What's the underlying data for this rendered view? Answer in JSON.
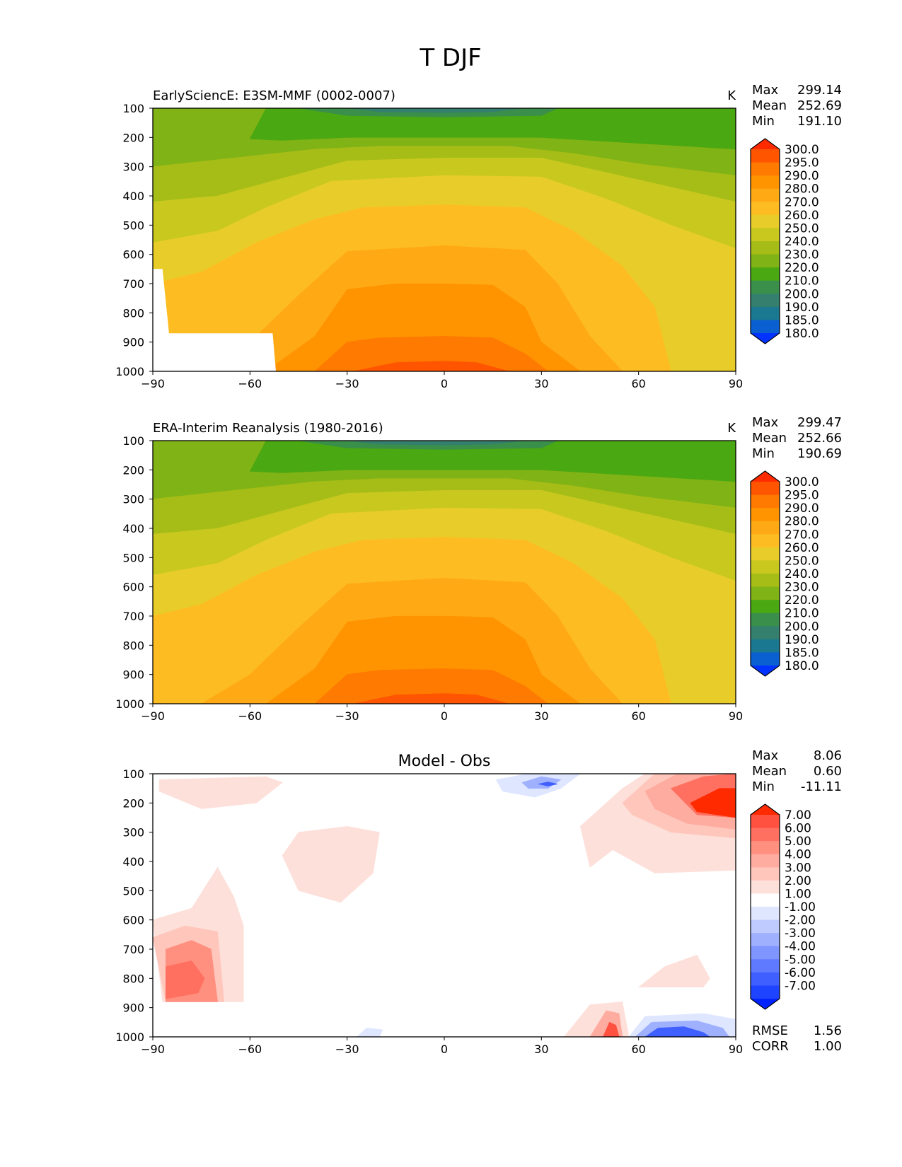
{
  "figure": {
    "title": "T DJF"
  },
  "chart_data": [
    {
      "type": "contour",
      "title": "EarlySciencE: E3SM-MMF (0002-0007)",
      "units": "K",
      "stats": {
        "max_label": "Max",
        "max": "299.14",
        "mean_label": "Mean",
        "mean": "252.69",
        "min_label": "Min",
        "min": "191.10"
      },
      "xticks": [
        "−90",
        "−60",
        "−30",
        "0",
        "30",
        "60",
        "90"
      ],
      "xlim": [
        -90,
        90
      ],
      "yticks": [
        "100",
        "200",
        "300",
        "400",
        "500",
        "600",
        "700",
        "800",
        "900",
        "1000"
      ],
      "ylim": [
        100,
        1000
      ],
      "colorbar": {
        "levels": [
          "300.0",
          "295.0",
          "290.0",
          "280.0",
          "270.0",
          "260.0",
          "250.0",
          "240.0",
          "230.0",
          "220.0",
          "210.0",
          "200.0",
          "190.0",
          "185.0",
          "180.0"
        ],
        "colors": [
          "#ff2a00",
          "#ff5500",
          "#ff7a00",
          "#ff9400",
          "#ffaa14",
          "#fdbd22",
          "#e8cd2a",
          "#c8c81e",
          "#a6bd18",
          "#80b315",
          "#4aa812",
          "#3a8f4a",
          "#347f6e",
          "#1a7890",
          "#0a60d0",
          "#0033ff"
        ]
      }
    },
    {
      "type": "contour",
      "title": "ERA-Interim Reanalysis (1980-2016)",
      "units": "K",
      "stats": {
        "max_label": "Max",
        "max": "299.47",
        "mean_label": "Mean",
        "mean": "252.66",
        "min_label": "Min",
        "min": "190.69"
      },
      "xticks": [
        "−90",
        "−60",
        "−30",
        "0",
        "30",
        "60",
        "90"
      ],
      "xlim": [
        -90,
        90
      ],
      "yticks": [
        "100",
        "200",
        "300",
        "400",
        "500",
        "600",
        "700",
        "800",
        "900",
        "1000"
      ],
      "ylim": [
        100,
        1000
      ],
      "colorbar": {
        "levels": [
          "300.0",
          "295.0",
          "290.0",
          "280.0",
          "270.0",
          "260.0",
          "250.0",
          "240.0",
          "230.0",
          "220.0",
          "210.0",
          "200.0",
          "190.0",
          "185.0",
          "180.0"
        ],
        "colors": [
          "#ff2a00",
          "#ff5500",
          "#ff7a00",
          "#ff9400",
          "#ffaa14",
          "#fdbd22",
          "#e8cd2a",
          "#c8c81e",
          "#a6bd18",
          "#80b315",
          "#4aa812",
          "#3a8f4a",
          "#347f6e",
          "#1a7890",
          "#0a60d0",
          "#0033ff"
        ]
      }
    },
    {
      "type": "contour",
      "title": "Model - Obs",
      "units": "",
      "stats": {
        "max_label": "Max",
        "max": "8.06",
        "mean_label": "Mean",
        "mean": "0.60",
        "min_label": "Min",
        "min": "-11.11"
      },
      "extra_stats": {
        "rmse_label": "RMSE",
        "rmse": "1.56",
        "corr_label": "CORR",
        "corr": "1.00"
      },
      "xticks": [
        "−90",
        "−60",
        "−30",
        "0",
        "30",
        "60",
        "90"
      ],
      "xlim": [
        -90,
        90
      ],
      "yticks": [
        "100",
        "200",
        "300",
        "400",
        "500",
        "600",
        "700",
        "800",
        "900",
        "1000"
      ],
      "ylim": [
        100,
        1000
      ],
      "colorbar": {
        "levels": [
          "7.00",
          "6.00",
          "5.00",
          "4.00",
          "3.00",
          "2.00",
          "1.00",
          "-1.00",
          "-2.00",
          "-3.00",
          "-4.00",
          "-5.00",
          "-6.00",
          "-7.00"
        ],
        "colors": [
          "#ff2a00",
          "#ff5040",
          "#ff7060",
          "#ff9080",
          "#ffaca0",
          "#ffc6bc",
          "#fde0da",
          "#ffffff",
          "#dfe6ff",
          "#bfcbff",
          "#9fb0ff",
          "#7f95ff",
          "#5f7aff",
          "#3f5fff",
          "#1f44ff",
          "#0022ff"
        ]
      }
    }
  ]
}
